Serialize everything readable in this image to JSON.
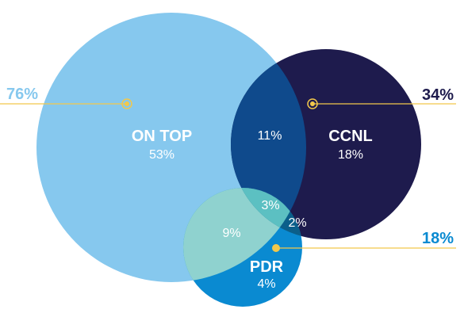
{
  "colors": {
    "on_top": "#86c8ee",
    "ccnl": "#1e1b4d",
    "pdr": "#0a8ad1",
    "on_top_ccnl": "#0f4a8c",
    "on_top_pdr": "#8fd2cf",
    "ccnl_pdr": "#0b5f8a",
    "all_three": "#5cc0c2",
    "leader_line": "#f2c84b",
    "total_on_top": "#86c8ee",
    "total_ccnl": "#1e1b4d",
    "total_pdr": "#0a8ad1",
    "inner_text": "#ffffff"
  },
  "diagram": {
    "sets": [
      {
        "id": "on_top",
        "label": "ON TOP",
        "value": "53%",
        "total": "76%"
      },
      {
        "id": "ccnl",
        "label": "CCNL",
        "value": "18%",
        "total": "34%"
      },
      {
        "id": "pdr",
        "label": "PDR",
        "value": "4%",
        "total": "18%"
      }
    ],
    "intersections": {
      "on_top_ccnl": "11%",
      "on_top_pdr": "9%",
      "ccnl_pdr": "2%",
      "all_three": "3%"
    }
  }
}
